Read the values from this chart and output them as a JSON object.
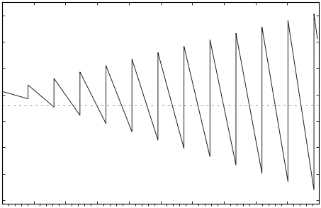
{
  "title": "",
  "xlabel": "",
  "ylabel": "",
  "line_color": "#1a1a1a",
  "line_width": 0.7,
  "dotted_line_color": "#999999",
  "background_color": "#ffffff",
  "figsize": [
    4.53,
    2.94
  ],
  "dpi": 100
}
